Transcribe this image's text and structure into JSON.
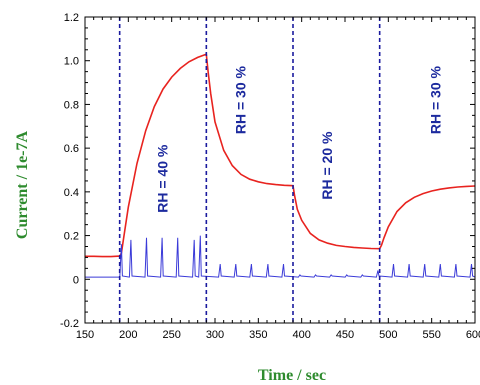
{
  "chart_data": {
    "type": "line",
    "xlabel": "Time / sec",
    "ylabel": "Current / 1e-7A",
    "xlim": [
      150,
      600
    ],
    "ylim": [
      -0.2,
      1.2
    ],
    "x_ticks": [
      "150",
      "200",
      "250",
      "300",
      "350",
      "400",
      "450",
      "500",
      "550",
      "600"
    ],
    "y_ticks": [
      "-0.2",
      "0",
      "0.2",
      "0.4",
      "0.6",
      "0.8",
      "1.0",
      "1.2"
    ],
    "grid": false,
    "colors": {
      "series_current": "#e8231f",
      "series_pulse": "#3a3ad8",
      "dividers": "#1a1a9e",
      "axis_titles": "#2e8b2e",
      "annotations": "#1c2a9e"
    },
    "dividers_x": [
      190,
      290,
      390,
      490
    ],
    "annotations": [
      {
        "text": "RH = 40 %",
        "x": 245,
        "y": 0.46
      },
      {
        "text": "RH = 30 %",
        "x": 335,
        "y": 0.82
      },
      {
        "text": "RH = 20 %",
        "x": 435,
        "y": 0.52
      },
      {
        "text": "RH = 30 %",
        "x": 560,
        "y": 0.82
      }
    ],
    "series": [
      {
        "x": [
          150,
          160,
          170,
          180,
          190,
          192,
          195,
          200,
          210,
          220,
          230,
          240,
          250,
          260,
          270,
          280,
          290,
          292,
          295,
          300,
          310,
          320,
          330,
          340,
          350,
          360,
          370,
          380,
          390,
          392,
          395,
          400,
          410,
          420,
          430,
          440,
          450,
          460,
          470,
          480,
          490,
          492,
          495,
          500,
          510,
          520,
          530,
          540,
          550,
          560,
          570,
          580,
          590,
          600
        ],
        "y": [
          0.105,
          0.105,
          0.104,
          0.104,
          0.106,
          0.12,
          0.2,
          0.33,
          0.53,
          0.68,
          0.79,
          0.87,
          0.925,
          0.965,
          0.995,
          1.015,
          1.03,
          0.95,
          0.85,
          0.72,
          0.59,
          0.52,
          0.48,
          0.458,
          0.446,
          0.438,
          0.433,
          0.43,
          0.428,
          0.38,
          0.32,
          0.27,
          0.21,
          0.18,
          0.165,
          0.155,
          0.15,
          0.146,
          0.143,
          0.141,
          0.14,
          0.155,
          0.19,
          0.24,
          0.31,
          0.35,
          0.375,
          0.392,
          0.404,
          0.412,
          0.418,
          0.422,
          0.425,
          0.427
        ]
      },
      {
        "baseline": 0.01,
        "peaks": [
          {
            "x": 192,
            "y": 0.16
          },
          {
            "x": 203,
            "y": 0.18
          },
          {
            "x": 221,
            "y": 0.19
          },
          {
            "x": 239,
            "y": 0.19
          },
          {
            "x": 257,
            "y": 0.19
          },
          {
            "x": 276,
            "y": 0.18
          },
          {
            "x": 283,
            "y": 0.2
          },
          {
            "x": 306,
            "y": 0.07
          },
          {
            "x": 324,
            "y": 0.07
          },
          {
            "x": 342,
            "y": 0.07
          },
          {
            "x": 361,
            "y": 0.07
          },
          {
            "x": 379,
            "y": 0.07
          },
          {
            "x": 398,
            "y": 0.02
          },
          {
            "x": 416,
            "y": 0.02
          },
          {
            "x": 434,
            "y": 0.02
          },
          {
            "x": 452,
            "y": 0.02
          },
          {
            "x": 470,
            "y": 0.02
          },
          {
            "x": 488,
            "y": 0.04
          },
          {
            "x": 506,
            "y": 0.07
          },
          {
            "x": 524,
            "y": 0.07
          },
          {
            "x": 542,
            "y": 0.07
          },
          {
            "x": 560,
            "y": 0.07
          },
          {
            "x": 578,
            "y": 0.07
          },
          {
            "x": 596,
            "y": 0.07
          }
        ]
      }
    ]
  }
}
